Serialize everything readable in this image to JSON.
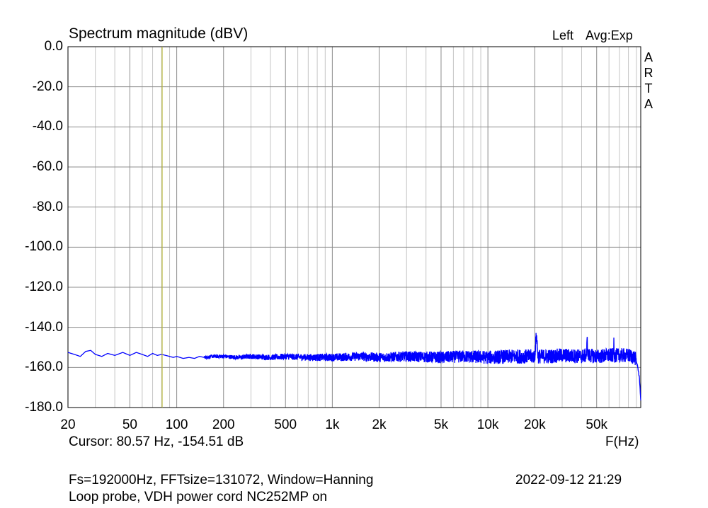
{
  "chart_data": {
    "type": "line",
    "title": "Spectrum magnitude (dBV)",
    "channel_label": "Left",
    "averaging_label": "Avg:Exp",
    "brand": "ARTA",
    "xlabel": "F(Hz)",
    "x_scale": "log",
    "xlim": [
      20,
      96000
    ],
    "ylim": [
      -180,
      0
    ],
    "y_ticks": [
      "0.0",
      "-20.0",
      "-40.0",
      "-60.0",
      "-80.0",
      "-100.0",
      "-120.0",
      "-140.0",
      "-160.0",
      "-180.0"
    ],
    "y_tick_values": [
      0,
      -20,
      -40,
      -60,
      -80,
      -100,
      -120,
      -140,
      -160,
      -180
    ],
    "x_ticks": [
      {
        "value": 20,
        "label": "20"
      },
      {
        "value": 50,
        "label": "50"
      },
      {
        "value": 100,
        "label": "100"
      },
      {
        "value": 200,
        "label": "200"
      },
      {
        "value": 500,
        "label": "500"
      },
      {
        "value": 1000,
        "label": "1k"
      },
      {
        "value": 2000,
        "label": "2k"
      },
      {
        "value": 5000,
        "label": "5k"
      },
      {
        "value": 10000,
        "label": "10k"
      },
      {
        "value": 20000,
        "label": "20k"
      },
      {
        "value": 50000,
        "label": "50k"
      }
    ],
    "cursor": {
      "freq_hz": 80.57,
      "level_db": -154.51,
      "color": "#b5b53c"
    },
    "series_color": "#0000ff",
    "grid": true,
    "series": [
      {
        "x": [
          20,
          22,
          24,
          26,
          28,
          30,
          33,
          36,
          40,
          45,
          50,
          55,
          60,
          65,
          70,
          75,
          80,
          85,
          90,
          95,
          100,
          110,
          120,
          130,
          140,
          150,
          170,
          200,
          250,
          300,
          400,
          500,
          700,
          1000,
          1500,
          2000,
          3000,
          5000,
          7000,
          10000,
          15000,
          20000,
          20500,
          21000,
          25000,
          30000,
          40000,
          43000,
          43500,
          44000,
          50000,
          60000,
          64000,
          64500,
          65000,
          70000,
          80000,
          85000,
          88000,
          90000,
          92000,
          94000,
          95000,
          96000
        ],
        "y": [
          -152.5,
          -153.5,
          -154.5,
          -152.0,
          -151.5,
          -153.5,
          -154.5,
          -153.0,
          -154.0,
          -152.5,
          -154.0,
          -152.5,
          -153.5,
          -154.5,
          -153.0,
          -154.0,
          -153.5,
          -154.0,
          -154.5,
          -155.0,
          -154.5,
          -155.5,
          -155.0,
          -155.5,
          -154.5,
          -155.0,
          -154.5,
          -154.5,
          -155.0,
          -154.5,
          -155.0,
          -154.5,
          -155.0,
          -155.0,
          -154.5,
          -155.0,
          -154.5,
          -155.0,
          -154.5,
          -155.0,
          -154.5,
          -154.5,
          -143.5,
          -154.5,
          -154.5,
          -154.0,
          -154.5,
          -154.0,
          -146.0,
          -154.0,
          -154.5,
          -154.0,
          -154.0,
          -147.5,
          -154.0,
          -154.0,
          -154.0,
          -154.5,
          -155.0,
          -157.0,
          -160.0,
          -165.0,
          -170.0,
          -177.0
        ]
      }
    ]
  },
  "cursor_readout": "Cursor: 80.57 Hz, -154.51 dB",
  "footer": {
    "line1": "Fs=192000Hz, FFTsize=131072, Window=Hanning",
    "line2": "Loop probe, VDH power cord NC252MP on",
    "timestamp": "2022-09-12  21:29"
  }
}
